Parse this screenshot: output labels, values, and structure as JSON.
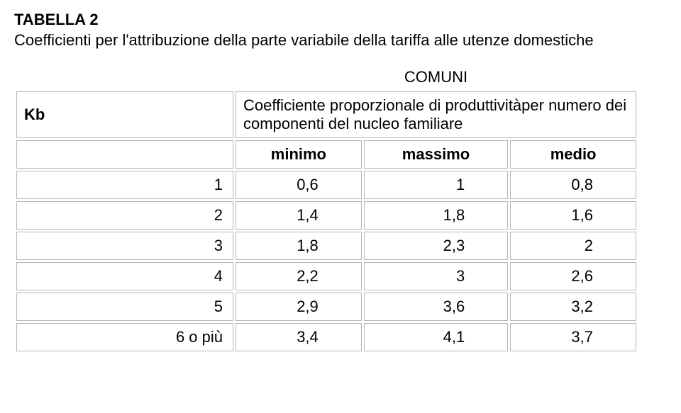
{
  "title": "TABELLA 2",
  "subtitle": "Coefficienti per l'attribuzione della parte variabile della tariffa alle utenze domestiche",
  "header": {
    "comuni": "COMUNI",
    "kb": "Kb",
    "kb_desc": "Coefficiente proporzionale di produttivitàper numero dei componenti  del nucleo familiare",
    "cols": [
      "minimo",
      "massimo",
      "medio"
    ]
  },
  "rows": [
    {
      "label": "1",
      "min": "0,6",
      "max": "1",
      "med": "0,8"
    },
    {
      "label": "2",
      "min": "1,4",
      "max": "1,8",
      "med": "1,6"
    },
    {
      "label": "3",
      "min": "1,8",
      "max": "2,3",
      "med": "2"
    },
    {
      "label": "4",
      "min": "2,2",
      "max": "3",
      "med": "2,6"
    },
    {
      "label": "5",
      "min": "2,9",
      "max": "3,6",
      "med": "3,2"
    },
    {
      "label": "6 o più",
      "min": "3,4",
      "max": "4,1",
      "med": "3,7"
    }
  ],
  "style": {
    "border_color": "#b5b5b5",
    "text_color": "#000000",
    "background": "#ffffff",
    "font_family": "Verdana",
    "title_fontsize": 22,
    "body_fontsize": 22
  }
}
